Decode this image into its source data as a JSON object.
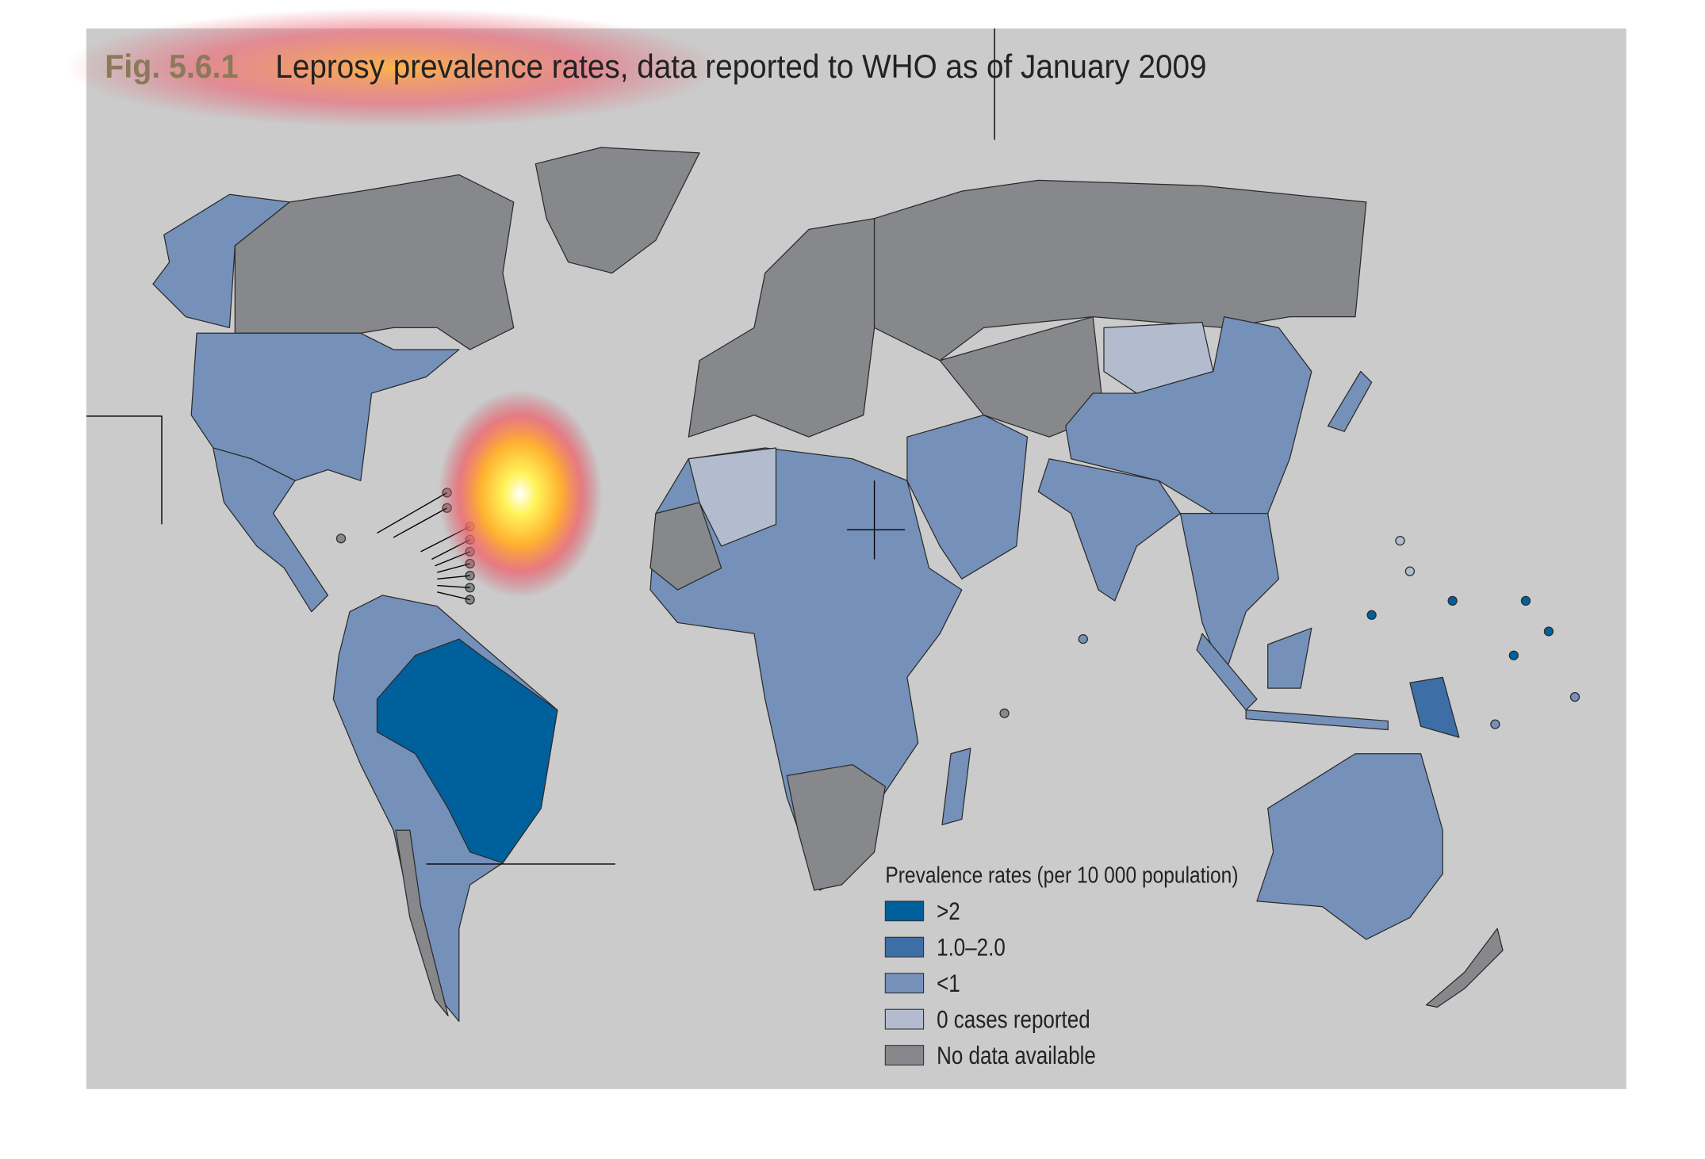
{
  "figure": {
    "label": "Fig. 5.6.1",
    "title": "Leprosy prevalence rates, data reported to WHO as of January 2009"
  },
  "legend": {
    "title": "Prevalence rates (per 10 000 population)",
    "items": [
      {
        "label": ">2",
        "color": "#00609c"
      },
      {
        "label": "1.0–2.0",
        "color": "#3d6ea6"
      },
      {
        "label": "<1",
        "color": "#7591b9"
      },
      {
        "label": "0 cases reported",
        "color": "#b3bccf"
      },
      {
        "label": "No data available",
        "color": "#87888b"
      }
    ]
  }
}
